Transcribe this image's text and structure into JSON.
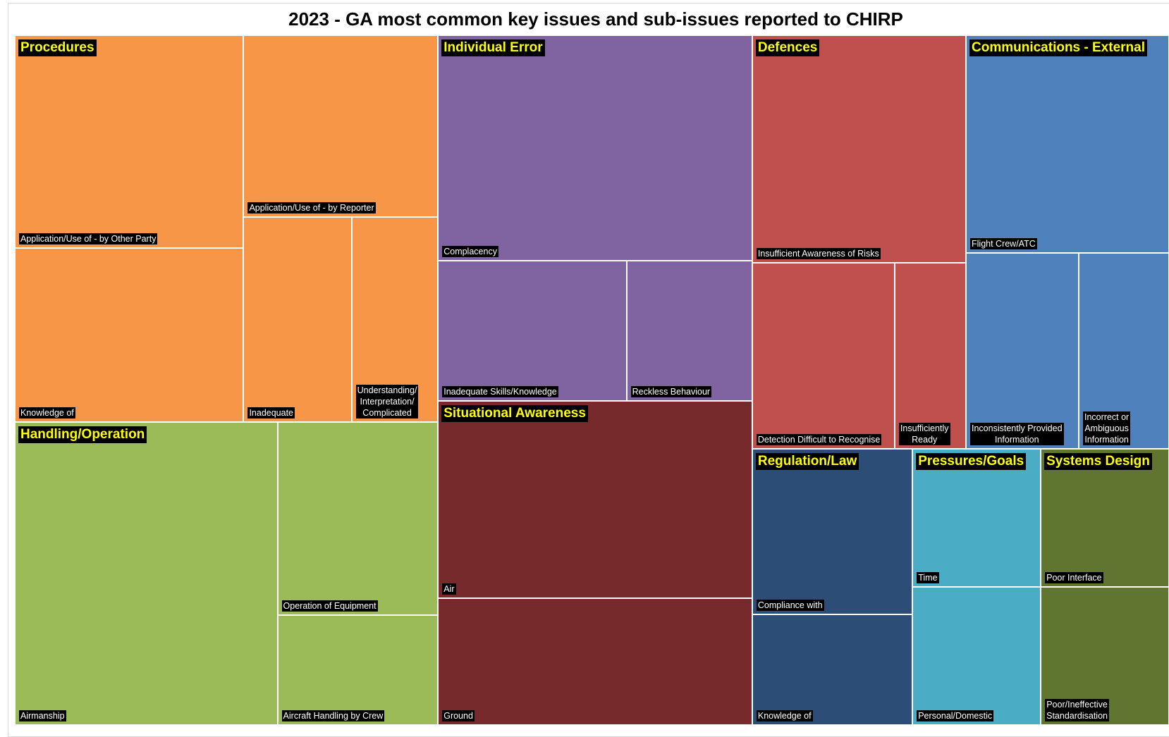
{
  "chart_data": {
    "type": "treemap",
    "title": "2023 - GA most common key issues and sub-issues reported to CHIRP",
    "series": [
      {
        "name": "Procedures",
        "color": "#f79646",
        "categories": [
          "Application/Use of - by Other Party",
          "Knowledge of",
          "Application/Use of - by Reporter",
          "Inadequate",
          "Understanding/\nInterpretation/\nComplicated"
        ],
        "values": [
          11,
          9,
          8,
          5,
          4
        ]
      },
      {
        "name": "Handling/Operation",
        "color": "#9bbb59",
        "categories": [
          "Airmanship",
          "Operation of Equipment",
          "Aircraft Handling by Crew"
        ],
        "values": [
          18,
          7,
          4
        ]
      },
      {
        "name": "Individual Error",
        "color": "#8064a2",
        "categories": [
          "Complacency",
          "Inadequate Skills/Knowledge",
          "Reckless Behaviour"
        ],
        "values": [
          16,
          6,
          4
        ]
      },
      {
        "name": "Situational Awareness",
        "color": "#772a2b",
        "categories": [
          "Air",
          "Ground"
        ],
        "values": [
          14,
          9
        ]
      },
      {
        "name": "Defences",
        "color": "#c0504d",
        "categories": [
          "Insufficient Awareness of Risks",
          "Detection Difficult to Recognise",
          "Insufficiently\nReady"
        ],
        "values": [
          11,
          6,
          3
        ]
      },
      {
        "name": "Communications - External",
        "color": "#4f81bd",
        "categories": [
          "Flight Crew/ATC",
          "Inconsistently Provided\nInformation",
          "Incorrect or\nAmbiguous\nInformation"
        ],
        "values": [
          10,
          5,
          4
        ]
      },
      {
        "name": "Regulation/Law",
        "color": "#2c4d75",
        "categories": [
          "Compliance with",
          "Knowledge of"
        ],
        "values": [
          6,
          4
        ]
      },
      {
        "name": "Pressures/Goals",
        "color": "#4bacc6",
        "categories": [
          "Time",
          "Personal/Domestic"
        ],
        "values": [
          4,
          4
        ]
      },
      {
        "name": "Systems Design",
        "color": "#5f7530",
        "categories": [
          "Poor Interface",
          "Poor/Ineffective\nStandardisation"
        ],
        "values": [
          4,
          4
        ]
      }
    ]
  }
}
